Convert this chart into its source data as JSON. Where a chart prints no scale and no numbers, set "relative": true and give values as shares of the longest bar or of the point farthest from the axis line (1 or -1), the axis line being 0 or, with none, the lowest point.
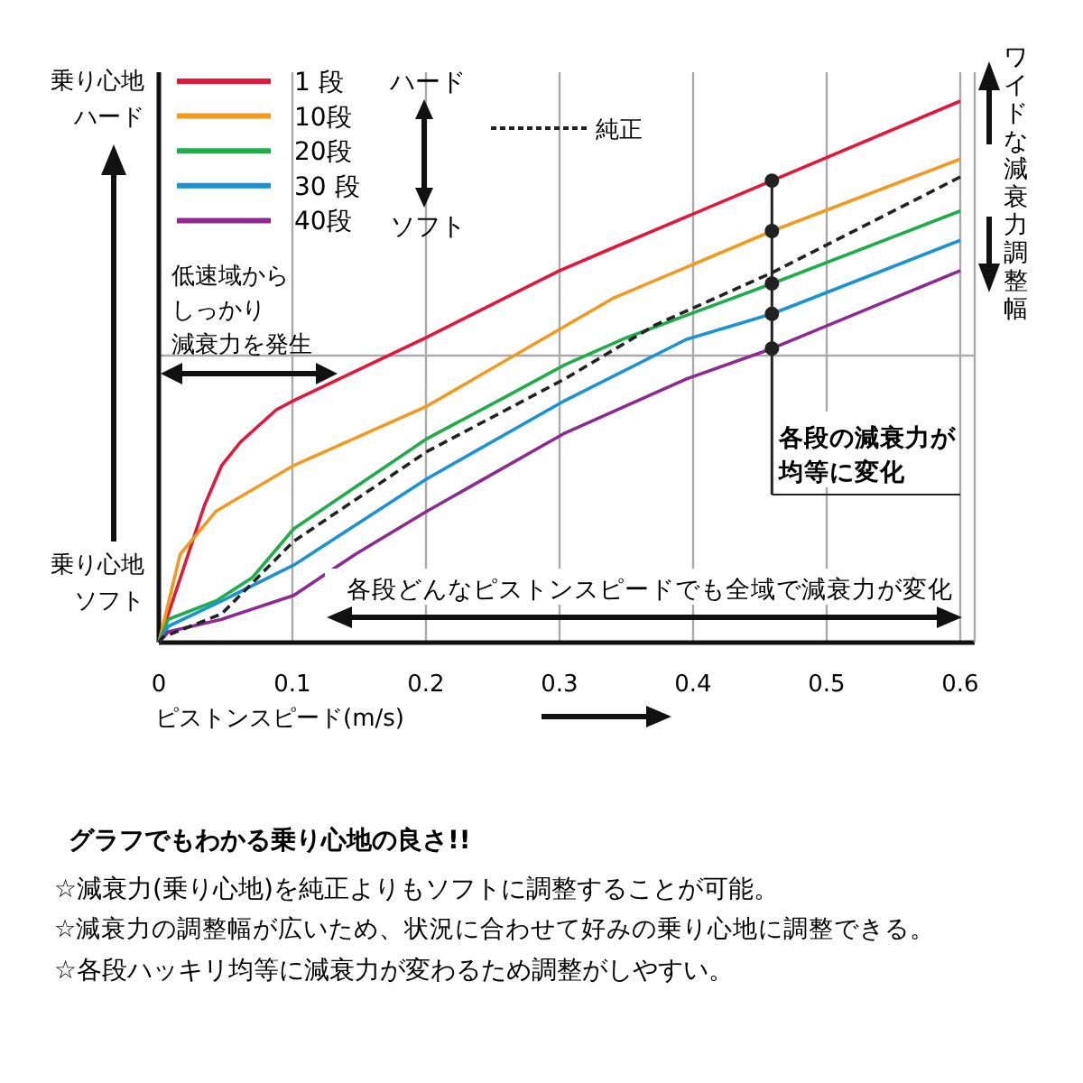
{
  "chart_data": {
    "type": "line",
    "relative": true,
    "xlabel": "ピストンスピード(m/s)",
    "xlim": [
      0,
      0.6
    ],
    "xticks": [
      0,
      0.1,
      0.2,
      0.3,
      0.4,
      0.5,
      0.6
    ],
    "grid": "x",
    "legend": "top left",
    "series": [
      {
        "name": "1 段",
        "color": "#e4163a",
        "line_style": "solid",
        "x": [
          0,
          0.034,
          0.047,
          0.061,
          0.088,
          0.101,
          0.2,
          0.3,
          0.341,
          0.459,
          0.6
        ],
        "values": [
          0,
          0.253,
          0.327,
          0.37,
          0.43,
          0.447,
          0.563,
          0.687,
          0.73,
          0.853,
          1
        ]
      },
      {
        "name": "10段",
        "color": "#f39a1e",
        "line_style": "solid",
        "x": [
          0,
          0.016,
          0.043,
          0.101,
          0.201,
          0.341,
          0.459,
          0.6
        ],
        "values": [
          0,
          0.163,
          0.243,
          0.327,
          0.437,
          0.637,
          0.76,
          0.893
        ]
      },
      {
        "name": "20段",
        "color": "#1fad4b",
        "line_style": "solid",
        "x": [
          0,
          0.007,
          0.043,
          0.07,
          0.101,
          0.147,
          0.201,
          0.259,
          0.304,
          0.35,
          0.459,
          0.6
        ],
        "values": [
          0,
          0.043,
          0.077,
          0.12,
          0.21,
          0.287,
          0.377,
          0.453,
          0.513,
          0.563,
          0.663,
          0.797
        ]
      },
      {
        "name": "30 段",
        "color": "#1a93d3",
        "line_style": "solid",
        "x": [
          0,
          0.007,
          0.047,
          0.101,
          0.201,
          0.304,
          0.395,
          0.459,
          0.6
        ],
        "values": [
          0,
          0.03,
          0.077,
          0.143,
          0.303,
          0.447,
          0.56,
          0.607,
          0.743
        ]
      },
      {
        "name": "40段",
        "color": "#8d2a90",
        "line_style": "solid",
        "x": [
          0,
          0.007,
          0.047,
          0.101,
          0.147,
          0.201,
          0.304,
          0.395,
          0.459,
          0.6
        ],
        "values": [
          0,
          0.02,
          0.043,
          0.087,
          0.163,
          0.243,
          0.387,
          0.487,
          0.543,
          0.687
        ]
      },
      {
        "name": "純正",
        "color": "#222222",
        "line_style": "dashed",
        "x": [
          0,
          0.003,
          0.047,
          0.101,
          0.201,
          0.304,
          0.372,
          0.459,
          0.6
        ],
        "values": [
          0,
          0.01,
          0.053,
          0.187,
          0.353,
          0.487,
          0.587,
          0.683,
          0.86
        ]
      },
      {
        "type": "scatter",
        "marker": "circle",
        "color": "#222222",
        "x": [
          0.459,
          0.459,
          0.459,
          0.459,
          0.459
        ],
        "values": [
          0.853,
          0.76,
          0.663,
          0.607,
          0.543
        ]
      }
    ],
    "ref_lines": [
      {
        "axis": "y",
        "value": 0.53,
        "color": "#aaaaaa"
      }
    ],
    "annotations": [
      "乗り心地",
      "ハード",
      "乗り心地",
      "ソフト",
      "ハード",
      "ソフト",
      "低速域から",
      "しっかり",
      "減衰力を発生",
      "各段の減衰力が",
      "均等に変化",
      "各段どんなピストンスピードでも全域で減衰力が変化",
      "ワイドな減衰力調整幅",
      "グラフでもわかる乗り心地の良さ!!",
      "☆減衰力(乗り心地)を純正よりもソフトに調整することが可能。",
      "☆減衰力の調整幅が広いため、状況に合わせて好みの乗り心地に調整できる。",
      "☆各段ハッキリ均等に減衰力が変わるため調整がしやすい。"
    ]
  }
}
